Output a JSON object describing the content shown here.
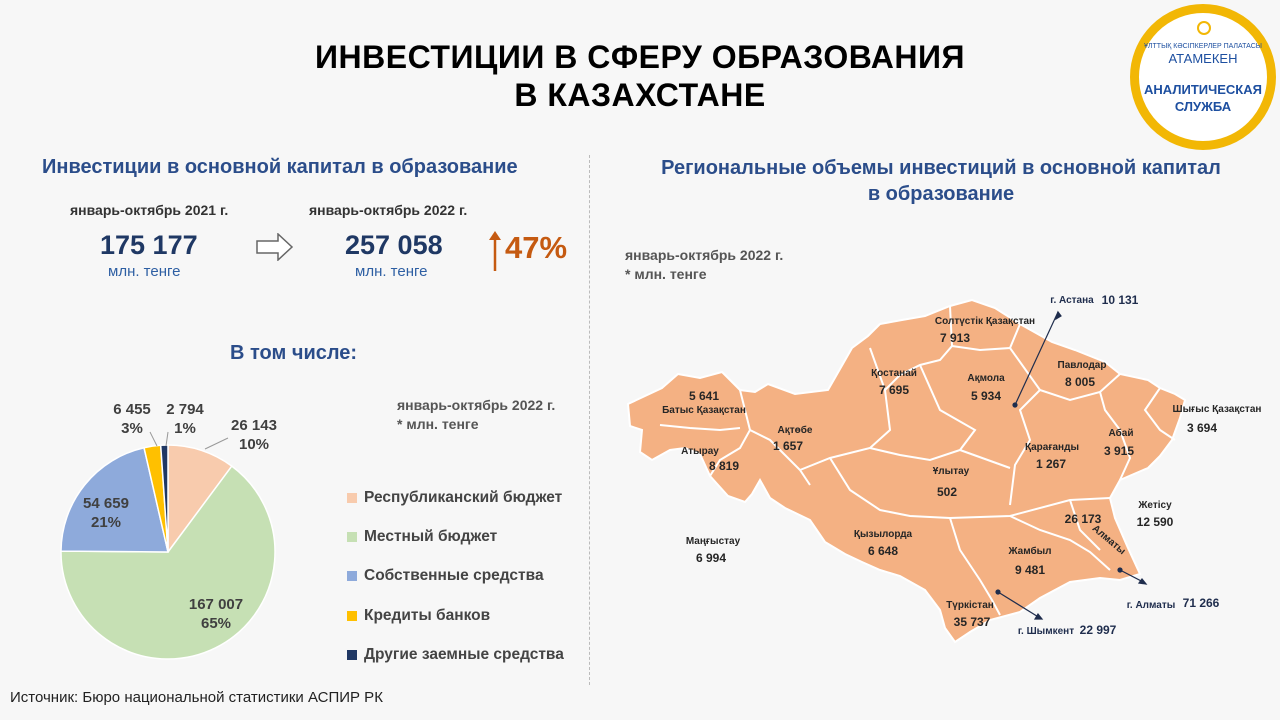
{
  "header": {
    "title_line1": "ИНВЕСТИЦИИ В СФЕРУ ОБРАЗОВАНИЯ",
    "title_line2": "В КАЗАХСТАНЕ"
  },
  "logo": {
    "brand_small": "ҰЛТТЫҚ КӘСІПКЕРЛЕР ПАЛАТАСЫ",
    "brand": "АТАМЕКЕН",
    "service_line1": "АНАЛИТИЧЕСКАЯ",
    "service_line2": "СЛУЖБА",
    "colors": {
      "ring": "#f2b705",
      "text": "#1d4fa0"
    }
  },
  "left": {
    "heading": "Инвестиции  в основной капитал в образование",
    "period_2021": "январь-октябрь 2021 г.",
    "value_2021": "175 177",
    "unit_2021": "млн.  тенге",
    "period_2022": "январь-октябрь 2022 г.",
    "value_2022": "257 058",
    "unit_2022": "млн.  тенге",
    "growth": "47%",
    "arrow_icon": "right-outline-arrow-icon",
    "growth_icon": "up-arrow-icon",
    "subheading": "В том числе:",
    "pie_note_line1": "январь-октябрь 2022 г.",
    "pie_note_line2": "* млн. тенге"
  },
  "chart_data": {
    "type": "pie",
    "title": "",
    "series": [
      {
        "name": "Республиканский бюджет",
        "value": 26143,
        "value_label": "26 143",
        "pct_label": "10%",
        "color": "#f8cbad"
      },
      {
        "name": "Местный бюджет",
        "value": 167007,
        "value_label": "167 007",
        "pct_label": "65%",
        "color": "#c6e0b4"
      },
      {
        "name": "Собственные средства",
        "value": 54659,
        "value_label": "54 659",
        "pct_label": "21%",
        "color": "#8eaadb"
      },
      {
        "name": "Кредиты банков",
        "value": 6455,
        "value_label": "6 455",
        "pct_label": "3%",
        "color": "#ffc000"
      },
      {
        "name": "Другие заемные средства",
        "value": 2794,
        "value_label": "2 794",
        "pct_label": "1%",
        "color": "#203864"
      }
    ],
    "legend_position": "right"
  },
  "right": {
    "heading_line1": "Региональные объемы инвестиций в основной капитал",
    "heading_line2": "в образование",
    "note_line1": "январь-октябрь 2022 г.",
    "note_line2": "* млн. тенге",
    "map_color": "#f4b183",
    "regions": [
      {
        "id": "west-kz",
        "name": "Батыс  Қазақстан",
        "value": "5 641"
      },
      {
        "id": "atyrau",
        "name": "Атырау",
        "value": "8 819"
      },
      {
        "id": "aktobe",
        "name": "Ақтөбе",
        "value": "1 657"
      },
      {
        "id": "mangystau",
        "name": "Маңғыстау",
        "value": "6 994"
      },
      {
        "id": "kostanay",
        "name": "Қостанай",
        "value": "7 695"
      },
      {
        "id": "north-kz",
        "name": "Солтүстік  Қазақстан",
        "value": "7 913"
      },
      {
        "id": "akmola",
        "name": "Ақмола",
        "value": "5 934"
      },
      {
        "id": "pavlodar",
        "name": "Павлодар",
        "value": "8 005"
      },
      {
        "id": "karaganda",
        "name": "Қарағанды",
        "value": "1 267"
      },
      {
        "id": "ulytau",
        "name": "Ұлытау",
        "value": "502"
      },
      {
        "id": "kyzylorda",
        "name": "Қызылорда",
        "value": "6 648"
      },
      {
        "id": "abai",
        "name": "Абай",
        "value": "3 915"
      },
      {
        "id": "east-kz",
        "name": "Шығыс  Қазақстан",
        "value": "3 694"
      },
      {
        "id": "zhetysu",
        "name": "Жетісу",
        "value": "12 590"
      },
      {
        "id": "almaty-reg",
        "name": "Алматы",
        "value": "26 173"
      },
      {
        "id": "zhambyl",
        "name": "Жамбыл",
        "value": "9 481"
      },
      {
        "id": "turkestan",
        "name": "Түркістан",
        "value": "35 737"
      }
    ],
    "cities": [
      {
        "id": "astana",
        "name": "г. Астана",
        "value": "10 131"
      },
      {
        "id": "almaty",
        "name": "г. Алматы",
        "value": "71 266"
      },
      {
        "id": "shymkent",
        "name": "г. Шымкент",
        "value": "22 997"
      }
    ]
  },
  "footer": {
    "source": "Источник:  Бюро национальной  статистики  АСПИР РК"
  }
}
